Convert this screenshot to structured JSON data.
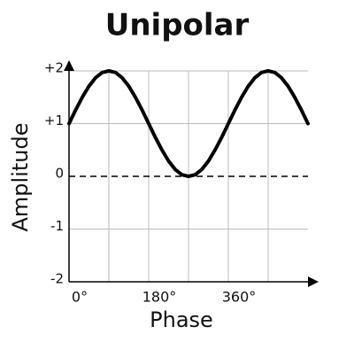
{
  "chart_data": {
    "type": "line",
    "title": "Unipolar",
    "x_label": "Phase",
    "y_label": "Amplitude",
    "x": [
      0,
      15,
      30,
      45,
      60,
      75,
      90,
      105,
      120,
      135,
      150,
      165,
      180,
      195,
      210,
      225,
      240,
      255,
      270,
      285,
      300,
      315,
      330,
      345,
      360,
      375,
      390,
      405,
      420,
      435,
      450,
      465,
      480,
      495,
      510,
      525,
      540
    ],
    "series": [
      {
        "color": "#000000",
        "values": [
          1,
          1.26,
          1.5,
          1.71,
          1.87,
          1.97,
          2,
          1.97,
          1.87,
          1.71,
          1.5,
          1.26,
          1,
          0.74,
          0.5,
          0.29,
          0.13,
          0.03,
          0,
          0.03,
          0.13,
          0.29,
          0.5,
          0.74,
          1,
          1.26,
          1.5,
          1.71,
          1.87,
          1.97,
          2,
          1.97,
          1.87,
          1.71,
          1.5,
          1.26,
          1
        ]
      }
    ],
    "xlim": [
      0,
      540
    ],
    "xticks": [
      {
        "value": 0,
        "label": "0°"
      },
      {
        "value": 180,
        "label": "180°"
      },
      {
        "value": 360,
        "label": "360°"
      }
    ],
    "xgrid": [
      90,
      180,
      270,
      360,
      450
    ],
    "ylim": [
      -2,
      2
    ],
    "yticks": [
      {
        "value": 2,
        "label": "+2"
      },
      {
        "value": 1,
        "label": "+1"
      },
      0,
      -1,
      -2
    ],
    "dashed_zero_line": true,
    "grid": true
  }
}
